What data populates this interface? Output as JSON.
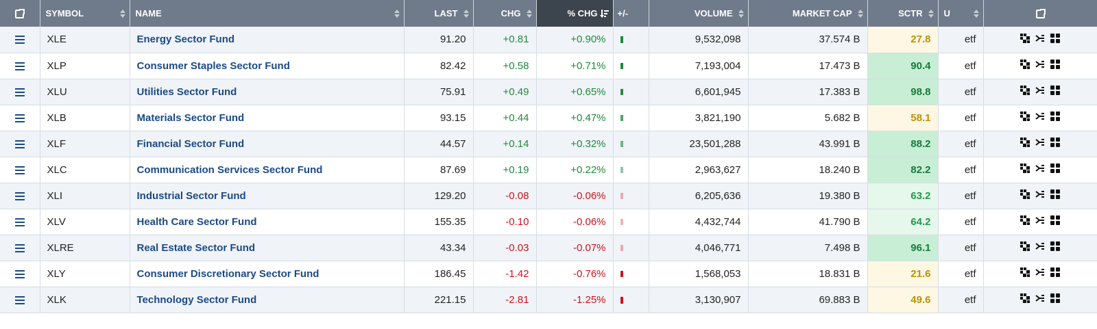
{
  "columns": {
    "symbol": "SYMBOL",
    "name": "NAME",
    "last": "LAST",
    "chg": "CHG",
    "pct_chg": "% CHG",
    "pm": "+/-",
    "volume": "VOLUME",
    "market_cap": "MARKET CAP",
    "sctr": "SCTR",
    "u": "U"
  },
  "colors": {
    "header_bg": "#6f7b8a",
    "header_active_bg": "#3c444e",
    "positive": "#1e8a3c",
    "negative": "#d0121b",
    "link": "#1b4a85",
    "sctr_low_bg": "#fdf7e3",
    "sctr_high_bg": "#c8eed6",
    "sctr_mid_bg": "#e6f7ec"
  },
  "rows": [
    {
      "symbol": "XLE",
      "name": "Energy Sector Fund",
      "last": "91.20",
      "chg": "+0.81",
      "pct_chg": "+0.90%",
      "pct": 0.9,
      "volume": "9,532,098",
      "market_cap": "37.574 B",
      "sctr": "27.8",
      "u": "etf"
    },
    {
      "symbol": "XLP",
      "name": "Consumer Staples Sector Fund",
      "last": "82.42",
      "chg": "+0.58",
      "pct_chg": "+0.71%",
      "pct": 0.71,
      "volume": "7,193,004",
      "market_cap": "17.473 B",
      "sctr": "90.4",
      "u": "etf"
    },
    {
      "symbol": "XLU",
      "name": "Utilities Sector Fund",
      "last": "75.91",
      "chg": "+0.49",
      "pct_chg": "+0.65%",
      "pct": 0.65,
      "volume": "6,601,945",
      "market_cap": "17.383 B",
      "sctr": "98.8",
      "u": "etf"
    },
    {
      "symbol": "XLB",
      "name": "Materials Sector Fund",
      "last": "93.15",
      "chg": "+0.44",
      "pct_chg": "+0.47%",
      "pct": 0.47,
      "volume": "3,821,190",
      "market_cap": "5.682 B",
      "sctr": "58.1",
      "u": "etf"
    },
    {
      "symbol": "XLF",
      "name": "Financial Sector Fund",
      "last": "44.57",
      "chg": "+0.14",
      "pct_chg": "+0.32%",
      "pct": 0.32,
      "volume": "23,501,288",
      "market_cap": "43.991 B",
      "sctr": "88.2",
      "u": "etf"
    },
    {
      "symbol": "XLC",
      "name": "Communication Services Sector Fund",
      "last": "87.69",
      "chg": "+0.19",
      "pct_chg": "+0.22%",
      "pct": 0.22,
      "volume": "2,963,627",
      "market_cap": "18.240 B",
      "sctr": "82.2",
      "u": "etf"
    },
    {
      "symbol": "XLI",
      "name": "Industrial Sector Fund",
      "last": "129.20",
      "chg": "-0.08",
      "pct_chg": "-0.06%",
      "pct": -0.06,
      "volume": "6,205,636",
      "market_cap": "19.380 B",
      "sctr": "63.2",
      "u": "etf"
    },
    {
      "symbol": "XLV",
      "name": "Health Care Sector Fund",
      "last": "155.35",
      "chg": "-0.10",
      "pct_chg": "-0.06%",
      "pct": -0.06,
      "volume": "4,432,744",
      "market_cap": "41.790 B",
      "sctr": "64.2",
      "u": "etf"
    },
    {
      "symbol": "XLRE",
      "name": "Real Estate Sector Fund",
      "last": "43.34",
      "chg": "-0.03",
      "pct_chg": "-0.07%",
      "pct": -0.07,
      "volume": "4,046,771",
      "market_cap": "7.498 B",
      "sctr": "96.1",
      "u": "etf"
    },
    {
      "symbol": "XLY",
      "name": "Consumer Discretionary Sector Fund",
      "last": "186.45",
      "chg": "-1.42",
      "pct_chg": "-0.76%",
      "pct": -0.76,
      "volume": "1,568,053",
      "market_cap": "18.831 B",
      "sctr": "21.6",
      "u": "etf"
    },
    {
      "symbol": "XLK",
      "name": "Technology Sector Fund",
      "last": "221.15",
      "chg": "-2.81",
      "pct_chg": "-1.25%",
      "pct": -1.25,
      "volume": "3,130,907",
      "market_cap": "69.883 B",
      "sctr": "49.6",
      "u": "etf"
    }
  ]
}
